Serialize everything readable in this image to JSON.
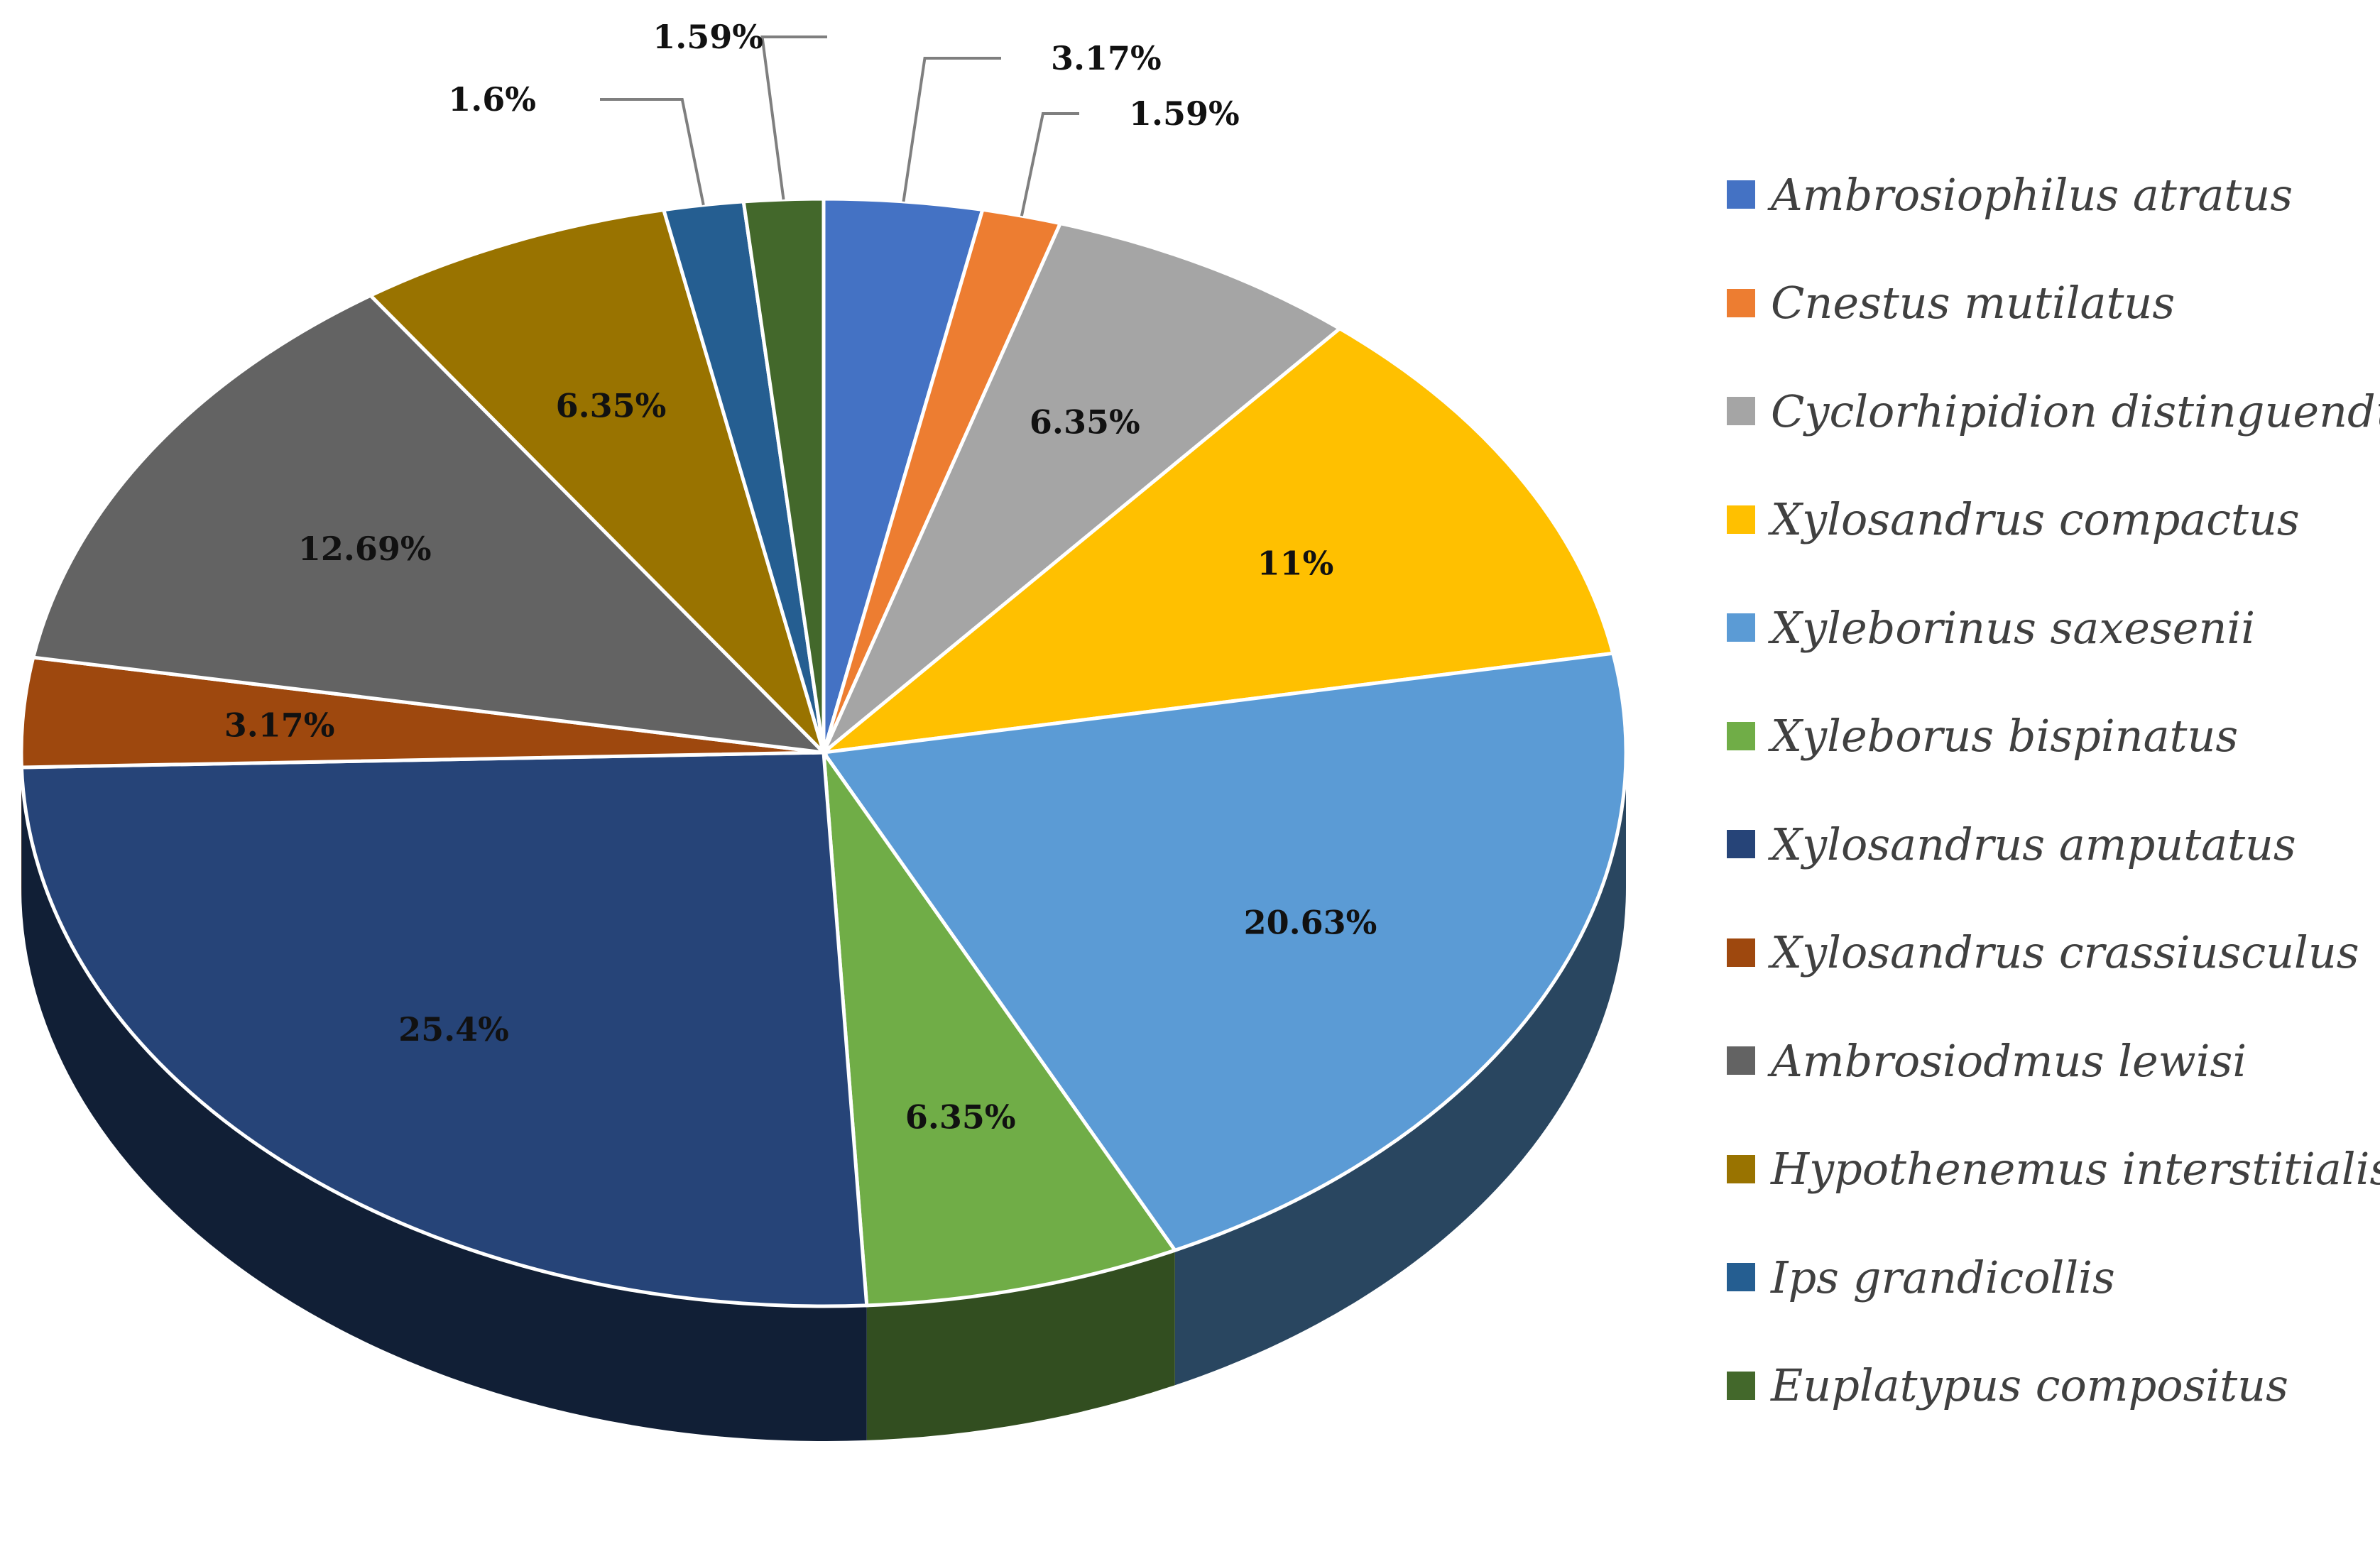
{
  "chart_data": {
    "type": "pie",
    "style": "3d",
    "title": "",
    "slices": [
      {
        "label": "Ambrosiophilus atratus",
        "value": 3.17,
        "value_label": "3.17%",
        "color": "#4472C4"
      },
      {
        "label": "Cnestus mutilatus",
        "value": 1.59,
        "value_label": "1.59%",
        "color": "#ED7D31"
      },
      {
        "label": "Cyclorhipidion distinguendum",
        "value": 6.35,
        "value_label": "6.35%",
        "color": "#A5A5A5"
      },
      {
        "label": "Xylosandrus compactus",
        "value": 11,
        "value_label": "11%",
        "color": "#FFC000"
      },
      {
        "label": "Xyleborinus saxesenii",
        "value": 20.63,
        "value_label": "20.63%",
        "color": "#5B9BD5"
      },
      {
        "label": "Xyleborus bispinatus",
        "value": 6.35,
        "value_label": "6.35%",
        "color": "#70AD47"
      },
      {
        "label": "Xylosandrus amputatus",
        "value": 25.4,
        "value_label": "25.4%",
        "color": "#264478"
      },
      {
        "label": "Xylosandrus crassiusculus",
        "value": 3.17,
        "value_label": "3.17%",
        "color": "#9E480E"
      },
      {
        "label": "Ambrosiodmus lewisi",
        "value": 12.69,
        "value_label": "12.69%",
        "color": "#636363"
      },
      {
        "label": "Hypothenemus interstitialis",
        "value": 6.35,
        "value_label": "6.35%",
        "color": "#997300"
      },
      {
        "label": "Ips grandicollis",
        "value": 1.6,
        "value_label": "1.6%",
        "color": "#255E91"
      },
      {
        "label": "Euplatypus compositus",
        "value": 1.59,
        "value_label": "1.59%",
        "color": "#43682B"
      }
    ],
    "legend_position": "right"
  }
}
